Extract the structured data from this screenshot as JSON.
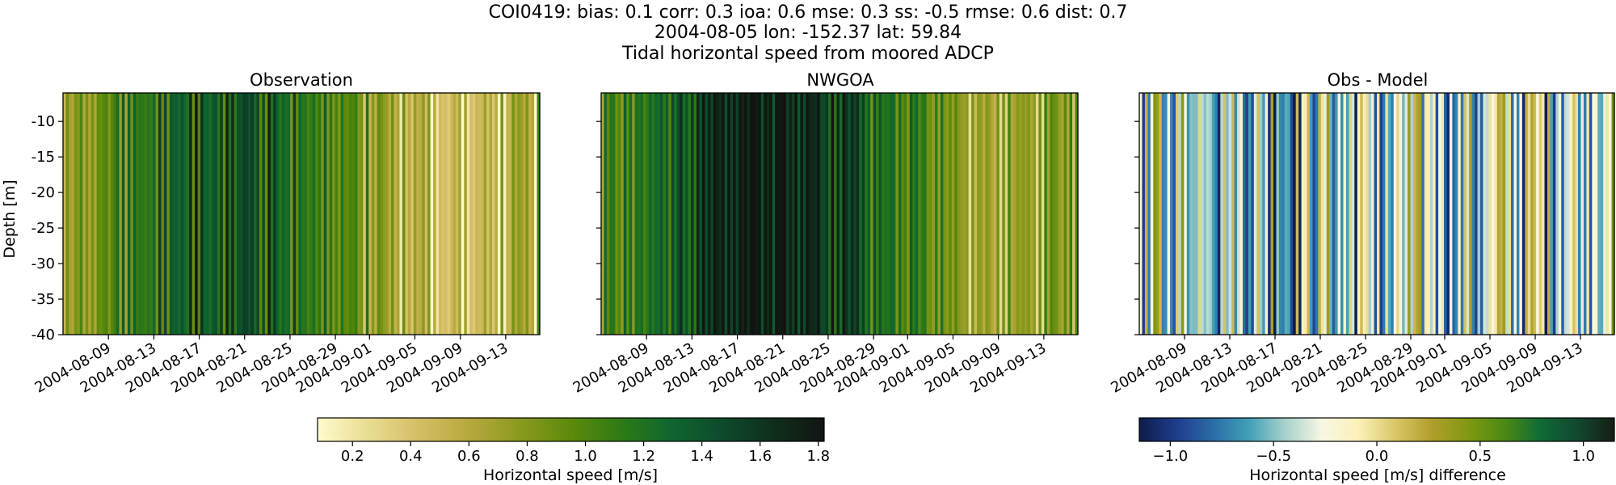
{
  "figure": {
    "title_line1": "COI0419: bias: 0.1  corr: 0.3  ioa: 0.6  mse: 0.3  ss: -0.5  rmse: 0.6  dist: 0.7",
    "title_line2": "2004-08-05 lon: -152.37 lat: 59.84",
    "title_line3": "Tidal horizontal speed from moored ADCP"
  },
  "chart_data": [
    {
      "type": "heatmap",
      "title": "Observation",
      "ylabel": "Depth [m]",
      "ylim": [
        -40,
        -6
      ],
      "y_ticks": [
        "-10",
        "-15",
        "-20",
        "-25",
        "-30",
        "-35",
        "-40"
      ],
      "xlim": [
        "2004-08-05",
        "2004-09-16"
      ],
      "x_ticks": [
        "2004-08-09",
        "2004-08-13",
        "2004-08-17",
        "2004-08-21",
        "2004-08-25",
        "2004-08-29",
        "2004-09-01",
        "2004-09-05",
        "2004-09-09",
        "2004-09-13"
      ],
      "colormap": "yellow-green-black (speed)",
      "colorbar": {
        "label": "Horizontal speed [m/s]",
        "range": [
          0.08,
          1.82
        ],
        "ticks": [
          "0.2",
          "0.4",
          "0.6",
          "0.8",
          "1.0",
          "1.2",
          "1.4",
          "1.6",
          "1.8"
        ]
      },
      "pattern": "vertical stripes varying with tidal cycle; mostly uniform over depth"
    },
    {
      "type": "heatmap",
      "title": "NWGOA",
      "ylim": [
        -40,
        -6
      ],
      "xlim": [
        "2004-08-05",
        "2004-09-16"
      ],
      "x_ticks": [
        "2004-08-09",
        "2004-08-13",
        "2004-08-17",
        "2004-08-21",
        "2004-08-25",
        "2004-08-29",
        "2004-09-01",
        "2004-09-05",
        "2004-09-09",
        "2004-09-13"
      ],
      "colormap": "yellow-green-black (speed)",
      "pattern": "vertical stripes, higher speeds (greener/darker) than observations"
    },
    {
      "type": "heatmap",
      "title": "Obs - Model",
      "ylim": [
        -40,
        -6
      ],
      "xlim": [
        "2004-08-05",
        "2004-09-16"
      ],
      "x_ticks": [
        "2004-08-09",
        "2004-08-13",
        "2004-08-17",
        "2004-08-21",
        "2004-08-25",
        "2004-08-29",
        "2004-09-01",
        "2004-09-05",
        "2004-09-09",
        "2004-09-13"
      ],
      "colormap": "diverging navy-teal-cream-olive-dark green",
      "colorbar": {
        "label": "Horizontal speed [m/s] difference",
        "range": [
          -1.15,
          1.15
        ],
        "ticks": [
          "−1.0",
          "−0.5",
          "0.0",
          "0.5",
          "1.0"
        ]
      },
      "pattern": "vertical stripes alternating between negative (blue) and positive (green) differences"
    }
  ],
  "colors": {
    "speed_cmap": [
      "#fefccd",
      "#e9dc92",
      "#d4be64",
      "#b6a83c",
      "#8a9a1f",
      "#5d8a0a",
      "#2e7a16",
      "#0e6630",
      "#0e4a2c",
      "#0f2e1c",
      "#111510"
    ],
    "diff_cmap": [
      "#0c1c4a",
      "#1f3c8c",
      "#2a6ba6",
      "#41a0b6",
      "#a7d2cb",
      "#f8f6e3",
      "#fbf1b8",
      "#dac767",
      "#b09f2b",
      "#809812",
      "#4a8a14",
      "#0f6a36",
      "#134730",
      "#141e14"
    ]
  }
}
